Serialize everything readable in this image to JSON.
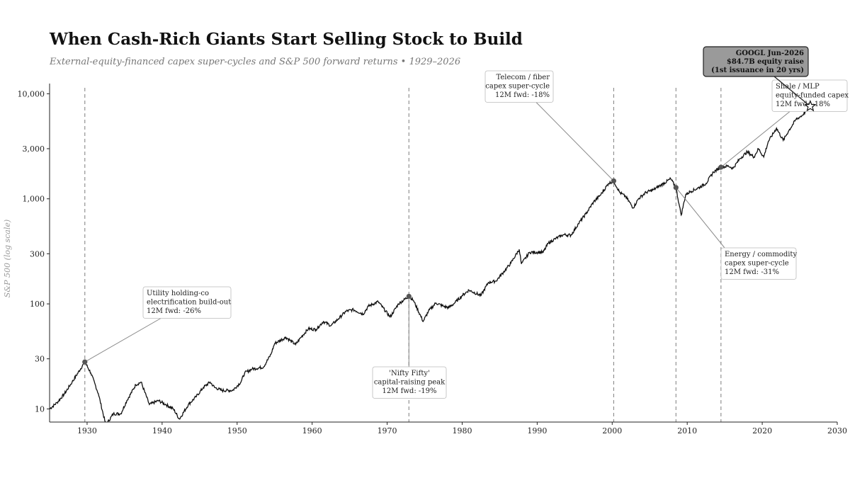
{
  "title": "When Cash-Rich Giants Start Selling Stock to Build",
  "subtitle": "External-equity-financed capex super-cycles and S&P 500 forward returns  •  1929–2026",
  "chart_data": {
    "type": "line",
    "ylabel": "S&P 500 (log scale)",
    "yscale": "log",
    "xlim": [
      1925,
      2030
    ],
    "ylim": [
      7.5,
      12500
    ],
    "x_ticks": [
      1930,
      1940,
      1950,
      1960,
      1970,
      1980,
      1990,
      2000,
      2010,
      2020,
      2030
    ],
    "x_tick_labels": [
      "1930",
      "1940",
      "1950",
      "1960",
      "1970",
      "1980",
      "1990",
      "2000",
      "2010",
      "2020",
      "2030"
    ],
    "y_ticks": [
      10,
      30,
      100,
      300,
      1000,
      3000,
      10000
    ],
    "y_tick_labels": [
      "10",
      "30",
      "100",
      "300",
      "1,000",
      "3,000",
      "10,000"
    ],
    "grid": false,
    "series": [
      {
        "x": [
          1925,
          1926,
          1927,
          1928,
          1929.7,
          1930.5,
          1931.5,
          1932.5,
          1933.5,
          1934.5,
          1935.3,
          1936.5,
          1937.2,
          1938.3,
          1939.5,
          1940.5,
          1941.5,
          1942.3,
          1943.5,
          1944.5,
          1945.5,
          1946.4,
          1947,
          1948,
          1949.4,
          1950.5,
          1951,
          1952,
          1953.5,
          1954.5,
          1955,
          1956.5,
          1957.8,
          1958.5,
          1959.5,
          1960.5,
          1961.5,
          1962.5,
          1963.5,
          1964.5,
          1965.5,
          1966.8,
          1967.5,
          1968.8,
          1970.4,
          1971.5,
          1972.9,
          1973.5,
          1974.8,
          1975.5,
          1976.5,
          1977.5,
          1978.2,
          1979,
          1980,
          1980.9,
          1982.5,
          1983.5,
          1984.5,
          1985.5,
          1986.5,
          1987.6,
          1987.9,
          1989,
          1990.8,
          1991.5,
          1992.5,
          1993.5,
          1994.5,
          1995.5,
          1996.5,
          1997.5,
          1998.5,
          1999.5,
          2000.2,
          2001,
          2001.8,
          2002.8,
          2003.5,
          2004.5,
          2005.5,
          2006.5,
          2007.8,
          2008.5,
          2008.9,
          2009.2,
          2009.8,
          2010.5,
          2011.5,
          2012.5,
          2013.5,
          2014.5,
          2015.5,
          2016.1,
          2017,
          2018,
          2018.9,
          2019.5,
          2020.2,
          2020.8,
          2021.9,
          2022.8,
          2023.5,
          2024.5,
          2025.3,
          2025.8,
          2026.4
        ],
        "values": [
          10,
          11.5,
          14,
          18,
          28,
          22,
          14,
          7,
          9,
          9,
          12,
          17,
          18,
          11,
          12,
          11,
          10,
          8,
          11,
          13,
          16,
          18,
          16,
          15,
          15,
          18,
          22,
          24,
          25,
          33,
          42,
          48,
          41,
          48,
          58,
          57,
          68,
          62,
          72,
          85,
          88,
          80,
          95,
          105,
          75,
          100,
          118,
          108,
          68,
          85,
          102,
          95,
          92,
          102,
          120,
          135,
          120,
          160,
          165,
          200,
          245,
          330,
          240,
          310,
          310,
          380,
          420,
          455,
          450,
          580,
          720,
          930,
          1100,
          1400,
          1480,
          1150,
          1050,
          820,
          1000,
          1150,
          1220,
          1350,
          1550,
          1280,
          900,
          700,
          1100,
          1180,
          1270,
          1400,
          1800,
          2000,
          2050,
          1950,
          2400,
          2800,
          2500,
          3000,
          2500,
          3500,
          4700,
          3600,
          4400,
          5700,
          6200,
          6800,
          7600
        ]
      }
    ],
    "vlines": [
      1929.7,
      1972.9,
      2000.2,
      2008.5,
      2014.5
    ],
    "annotations": [
      {
        "x": 1929.7,
        "y": 28,
        "lines": [
          "Utility holding-co",
          "electrification build-out",
          "12M fwd: -26%"
        ]
      },
      {
        "x": 1972.9,
        "y": 118,
        "lines": [
          "'Nifty Fifty'",
          "capital-raising peak",
          "12M fwd: -19%"
        ]
      },
      {
        "x": 2000.2,
        "y": 1480,
        "lines": [
          "Telecom / fiber",
          "capex super-cycle",
          "12M fwd: -18%"
        ]
      },
      {
        "x": 2008.5,
        "y": 1280,
        "lines": [
          "Energy / commodity",
          "capex super-cycle",
          "12M fwd: -31%"
        ]
      },
      {
        "x": 2014.5,
        "y": 2000,
        "lines": [
          "Shale / MLP",
          "equity-funded capex",
          "12M fwd: -18%"
        ]
      }
    ],
    "highlight": {
      "x": 2026.4,
      "y": 7600,
      "lines": [
        "GOOGL  Jun-2026",
        "$84.7B equity raise",
        "(1st issuance in 20 yrs)"
      ]
    }
  },
  "colors": {
    "line": "#111111",
    "vline": "#888888",
    "marker": "#555555",
    "highlight_box": "#9a9a9a"
  }
}
